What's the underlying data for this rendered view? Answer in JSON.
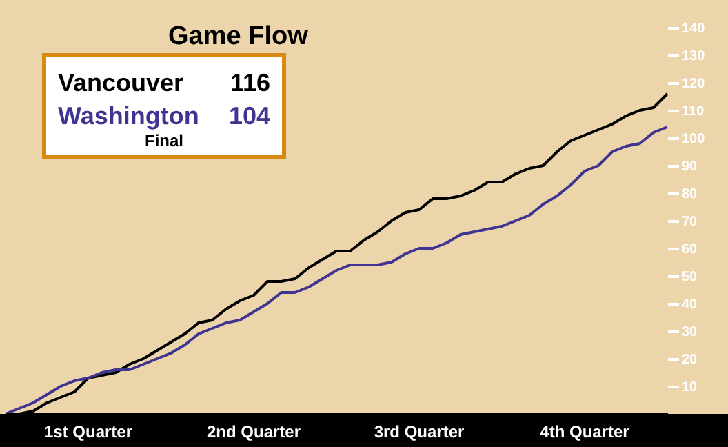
{
  "chart_data": {
    "type": "line",
    "title": "Game Flow",
    "categories": [
      null,
      null,
      null,
      null,
      null,
      null,
      null,
      null,
      null,
      null,
      null,
      null,
      null,
      null,
      null,
      null,
      null,
      null,
      null,
      null,
      null,
      null,
      null,
      null,
      null,
      null,
      null,
      null,
      null,
      null,
      null,
      null,
      null,
      null,
      null,
      null,
      null,
      null,
      null,
      null,
      null,
      null,
      null,
      null,
      null,
      null,
      null,
      null,
      null
    ],
    "ylim": [
      0,
      150
    ],
    "yticks": [
      10,
      20,
      30,
      40,
      50,
      60,
      70,
      80,
      90,
      100,
      110,
      120,
      130,
      140
    ],
    "line_style": "solid",
    "annotations": [
      "116",
      "104",
      "Final",
      "1st Quarter",
      "2nd Quarter",
      "3rd Quarter",
      "4th Quarter"
    ],
    "series": [
      {
        "name": "Vancouver",
        "color": "#000000",
        "values": [
          0,
          0,
          1,
          4,
          6,
          8,
          13,
          14,
          15,
          18,
          20,
          23,
          26,
          29,
          33,
          34,
          38,
          41,
          43,
          48,
          48,
          49,
          53,
          56,
          59,
          59,
          63,
          66,
          70,
          73,
          74,
          78,
          78,
          79,
          81,
          84,
          84,
          87,
          89,
          90,
          95,
          99,
          101,
          103,
          105,
          108,
          110,
          111,
          116
        ]
      },
      {
        "name": "Washington",
        "color": "#3f3591",
        "values": [
          0,
          2,
          4,
          7,
          10,
          12,
          13,
          15,
          16,
          16,
          18,
          20,
          22,
          25,
          29,
          31,
          33,
          34,
          37,
          40,
          44,
          44,
          46,
          49,
          52,
          54,
          54,
          54,
          55,
          58,
          60,
          60,
          62,
          65,
          66,
          67,
          68,
          70,
          72,
          76,
          79,
          83,
          88,
          90,
          95,
          97,
          98,
          102,
          104
        ]
      }
    ]
  }
}
